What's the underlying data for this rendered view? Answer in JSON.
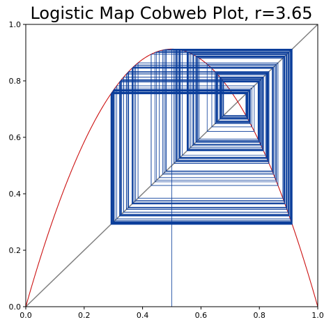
{
  "chart_data": {
    "type": "line",
    "title": "Logistic Map Cobweb Plot, r=3.65",
    "r": 3.65,
    "x0": 0.5,
    "iterations": 200,
    "xlabel": "",
    "ylabel": "",
    "xlim": [
      0.0,
      1.0
    ],
    "ylim": [
      0.0,
      1.0
    ],
    "xticks": [
      "0.0",
      "0.2",
      "0.4",
      "0.6",
      "0.8",
      "1.0"
    ],
    "yticks": [
      "0.0",
      "0.2",
      "0.4",
      "0.6",
      "0.8",
      "1.0"
    ],
    "grid": false,
    "legend": "none",
    "series": [
      {
        "kind": "curve",
        "formula": "r*x*(1-x)",
        "color": "#cc1111"
      },
      {
        "kind": "identity",
        "formula": "y=x",
        "color": "#808080"
      },
      {
        "kind": "cobweb",
        "color": "#0a3d9a"
      }
    ]
  }
}
